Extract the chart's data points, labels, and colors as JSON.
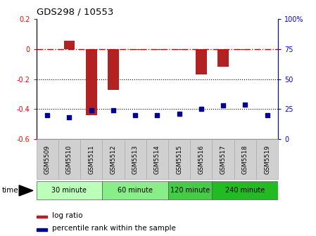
{
  "title": "GDS298 / 10553",
  "samples": [
    "GSM5509",
    "GSM5510",
    "GSM5511",
    "GSM5512",
    "GSM5513",
    "GSM5514",
    "GSM5515",
    "GSM5516",
    "GSM5517",
    "GSM5518",
    "GSM5519"
  ],
  "log_ratio": [
    0.0,
    0.055,
    -0.44,
    -0.27,
    -0.005,
    -0.005,
    -0.005,
    -0.17,
    -0.12,
    -0.005,
    0.0
  ],
  "percentile_rank": [
    20,
    18,
    24,
    24,
    20,
    20,
    21,
    25,
    28,
    29,
    20
  ],
  "ylim_left": [
    -0.6,
    0.2
  ],
  "ylim_right": [
    0,
    100
  ],
  "bar_color": "#b22222",
  "dot_color": "#000099",
  "dashed_line_color": "#cc0000",
  "groups": [
    {
      "label": "30 minute",
      "samples_range": [
        0,
        2
      ],
      "color": "#bbffbb"
    },
    {
      "label": "60 minute",
      "samples_range": [
        3,
        5
      ],
      "color": "#88ee88"
    },
    {
      "label": "120 minute",
      "samples_range": [
        6,
        7
      ],
      "color": "#44cc44"
    },
    {
      "label": "240 minute",
      "samples_range": [
        8,
        10
      ],
      "color": "#22bb22"
    }
  ],
  "time_label": "time",
  "legend_red": "log ratio",
  "legend_blue": "percentile rank within the sample",
  "dotted_lines": [
    -0.2,
    -0.4
  ],
  "right_ticks": [
    0,
    25,
    50,
    75,
    100
  ],
  "right_tick_labels": [
    "0",
    "25",
    "50",
    "75",
    "100%"
  ],
  "left_ticks": [
    -0.6,
    -0.4,
    -0.2,
    0.0,
    0.2
  ],
  "left_tick_labels": [
    "-0.6",
    "-0.4",
    "-0.2",
    "0",
    "0.2"
  ]
}
